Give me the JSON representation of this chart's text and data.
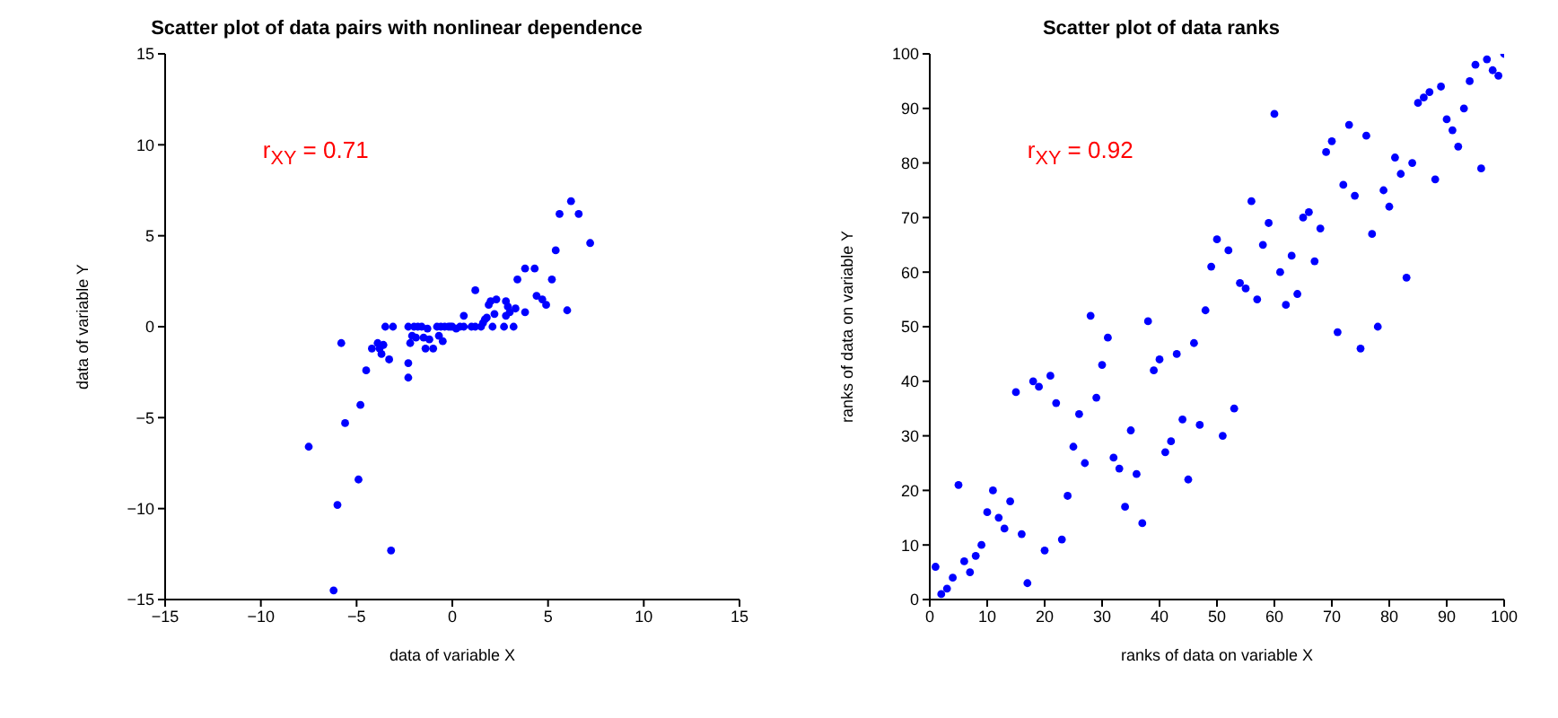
{
  "chart_data": [
    {
      "type": "scatter",
      "title": "Scatter plot of data pairs with nonlinear dependence",
      "xlabel": "data of variable X",
      "ylabel": "data of variable Y",
      "annotations": [
        "r$_{XY}$ = 0.71"
      ],
      "marker": "circle",
      "grid": false,
      "legend": false,
      "xlim": [
        -15,
        15
      ],
      "ylim": [
        -15,
        15
      ],
      "xticks": [
        -15,
        -10,
        -5,
        0,
        5,
        10,
        15
      ],
      "yticks": [
        -15,
        -10,
        -5,
        0,
        5,
        10,
        15
      ],
      "series": [
        {
          "color": "#0000ff",
          "x": [
            -7.5,
            -6.2,
            -6.0,
            -5.8,
            -5.6,
            -4.9,
            -4.8,
            -4.5,
            -4.2,
            -3.9,
            -3.8,
            -3.7,
            -3.6,
            -3.5,
            -3.3,
            -3.2,
            -3.1,
            -2.3,
            -2.3,
            -2.3,
            -2.2,
            -2.1,
            -2.0,
            -1.9,
            -1.8,
            -1.6,
            -1.5,
            -1.4,
            -1.3,
            -1.2,
            -1.0,
            -0.8,
            -0.7,
            -0.6,
            -0.5,
            -0.4,
            -0.2,
            -0.1,
            0.0,
            0.2,
            0.4,
            0.6,
            0.6,
            1.0,
            1.2,
            1.2,
            1.5,
            1.6,
            1.7,
            1.8,
            1.9,
            2.0,
            2.1,
            2.2,
            2.3,
            2.7,
            2.8,
            2.8,
            2.9,
            3.0,
            3.2,
            3.3,
            3.4,
            3.8,
            3.8,
            4.3,
            4.4,
            4.7,
            4.9,
            5.2,
            5.4,
            5.6,
            6.0,
            6.2,
            6.6,
            7.2
          ],
          "values": [
            -6.6,
            -14.5,
            -9.8,
            -0.9,
            -5.3,
            -8.4,
            -4.3,
            -2.4,
            -1.2,
            -0.9,
            -1.2,
            -1.5,
            -1.0,
            0,
            -1.8,
            -12.3,
            0,
            0,
            -2.8,
            -2.0,
            -0.9,
            -0.5,
            0,
            -0.6,
            0,
            0,
            -0.6,
            -1.2,
            -0.1,
            -0.7,
            -1.2,
            0,
            -0.5,
            0,
            -0.8,
            0,
            0,
            0,
            0,
            -0.1,
            0,
            0.6,
            0,
            0.0,
            2.0,
            0.0,
            0.0,
            0.2,
            0.4,
            0.5,
            1.2,
            1.4,
            0,
            0.7,
            1.5,
            0,
            1.4,
            0.6,
            1.1,
            0.8,
            0,
            1.0,
            2.6,
            3.2,
            0.8,
            3.2,
            1.7,
            1.5,
            1.2,
            2.6,
            4.2,
            6.2,
            0.9,
            6.9,
            6.2,
            4.6
          ]
        }
      ]
    },
    {
      "type": "scatter",
      "title": "Scatter plot of data ranks",
      "xlabel": "ranks of data on variable X",
      "ylabel": "ranks of data on variable Y",
      "annotations": [
        "r$_{XY}$ = 0.92"
      ],
      "marker": "circle",
      "grid": false,
      "legend": false,
      "xlim": [
        0,
        100
      ],
      "ylim": [
        0,
        100
      ],
      "xticks": [
        0,
        10,
        20,
        30,
        40,
        50,
        60,
        70,
        80,
        90,
        100
      ],
      "yticks": [
        0,
        10,
        20,
        30,
        40,
        50,
        60,
        70,
        80,
        90,
        100
      ],
      "series": [
        {
          "color": "#0000ff",
          "x": [
            1,
            2,
            3,
            4,
            5,
            6,
            7,
            8,
            9,
            10,
            11,
            12,
            13,
            14,
            15,
            16,
            17,
            18,
            19,
            20,
            21,
            22,
            23,
            24,
            25,
            26,
            27,
            28,
            29,
            30,
            31,
            32,
            33,
            34,
            35,
            36,
            37,
            38,
            39,
            40,
            41,
            42,
            43,
            44,
            45,
            46,
            47,
            48,
            49,
            50,
            51,
            52,
            53,
            54,
            55,
            56,
            57,
            58,
            59,
            60,
            61,
            62,
            63,
            64,
            65,
            66,
            67,
            68,
            69,
            70,
            71,
            72,
            73,
            74,
            75,
            76,
            77,
            78,
            79,
            80,
            81,
            82,
            83,
            84,
            85,
            86,
            87,
            88,
            89,
            90,
            91,
            92,
            93,
            94,
            95,
            96,
            97,
            98,
            99,
            100
          ],
          "values": [
            6,
            1,
            2,
            4,
            21,
            7,
            5,
            8,
            10,
            16,
            20,
            15,
            13,
            18,
            38,
            12,
            3,
            40,
            39,
            9,
            41,
            36,
            11,
            19,
            28,
            34,
            25,
            52,
            37,
            43,
            48,
            26,
            24,
            17,
            31,
            23,
            14,
            51,
            42,
            44,
            27,
            29,
            45,
            33,
            22,
            47,
            32,
            53,
            61,
            66,
            30,
            64,
            35,
            58,
            57,
            73,
            55,
            65,
            69,
            89,
            60,
            54,
            63,
            56,
            70,
            71,
            62,
            68,
            82,
            84,
            49,
            76,
            87,
            74,
            46,
            85,
            67,
            50,
            75,
            72,
            81,
            78,
            59,
            80,
            91,
            92,
            93,
            77,
            94,
            88,
            86,
            83,
            90,
            95,
            98,
            79,
            99,
            97,
            96,
            100
          ]
        }
      ]
    }
  ]
}
